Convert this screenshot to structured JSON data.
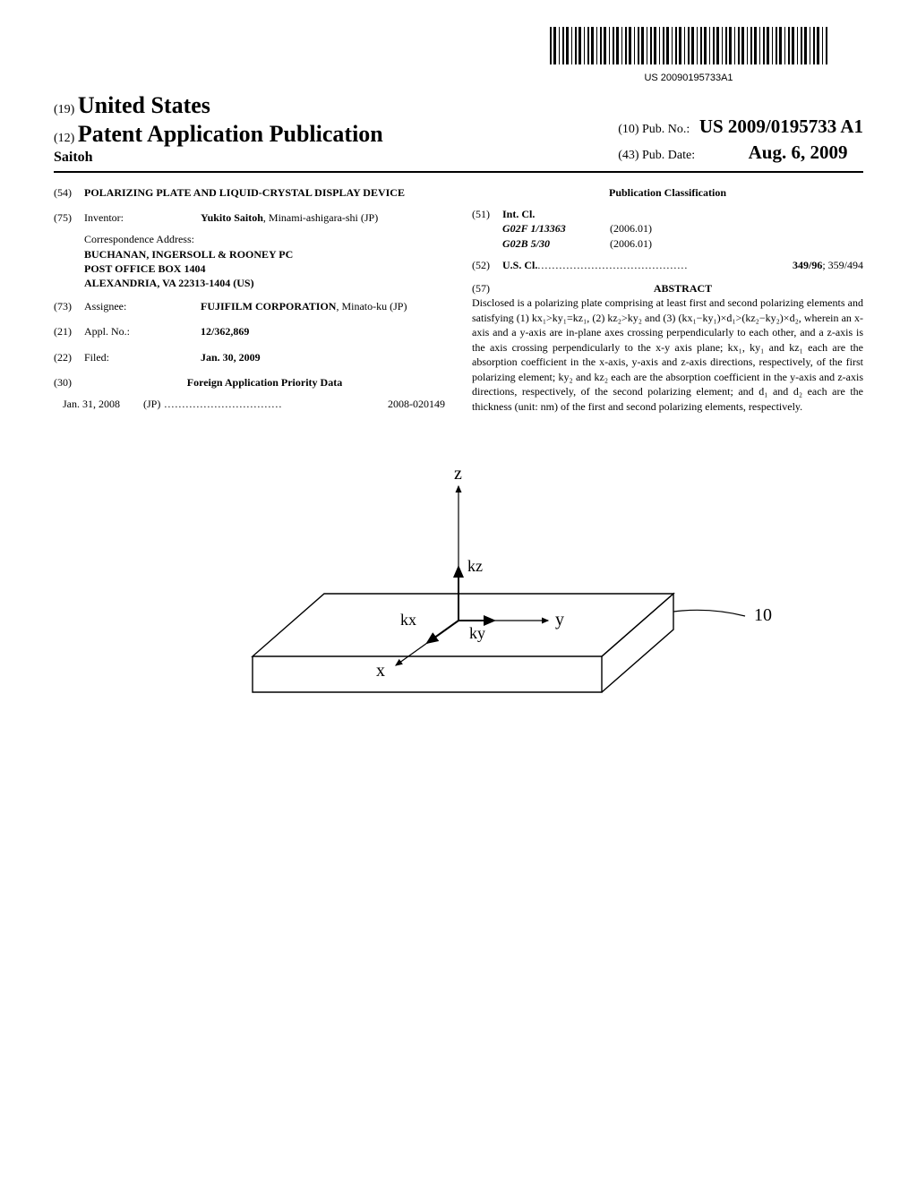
{
  "barcode_number": "US 20090195733A1",
  "header": {
    "country_code": "(19)",
    "country": "United States",
    "pub_type_code": "(12)",
    "pub_type": "Patent Application Publication",
    "applicant": "Saitoh",
    "pub_no_code": "(10)",
    "pub_no_label": "Pub. No.:",
    "pub_no": "US 2009/0195733 A1",
    "pub_date_code": "(43)",
    "pub_date_label": "Pub. Date:",
    "pub_date": "Aug. 6, 2009"
  },
  "left": {
    "title_code": "(54)",
    "title": "POLARIZING PLATE AND LIQUID-CRYSTAL DISPLAY DEVICE",
    "inventor_code": "(75)",
    "inventor_label": "Inventor:",
    "inventor": "Yukito Saitoh, Minami-ashigara-shi (JP)",
    "correspondence_label": "Correspondence Address:",
    "correspondence_line1": "BUCHANAN, INGERSOLL & ROONEY PC",
    "correspondence_line2": "POST OFFICE BOX 1404",
    "correspondence_line3": "ALEXANDRIA, VA 22313-1404 (US)",
    "assignee_code": "(73)",
    "assignee_label": "Assignee:",
    "assignee": "FUJIFILM CORPORATION, Minato-ku (JP)",
    "assignee_bold": "FUJIFILM CORPORATION",
    "assignee_rest": ", Minato-ku (JP)",
    "appl_code": "(21)",
    "appl_label": "Appl. No.:",
    "appl_no": "12/362,869",
    "filed_code": "(22)",
    "filed_label": "Filed:",
    "filed": "Jan. 30, 2009",
    "priority_code": "(30)",
    "priority_title": "Foreign Application Priority Data",
    "priority_date": "Jan. 31, 2008",
    "priority_country": "(JP)",
    "priority_dots": " .................................",
    "priority_no": "2008-020149"
  },
  "right": {
    "pubclass_title": "Publication Classification",
    "intcl_code": "(51)",
    "intcl_label": "Int. Cl.",
    "intcl_items": [
      {
        "cls": "G02F 1/13363",
        "yr": "(2006.01)"
      },
      {
        "cls": "G02B 5/30",
        "yr": "(2006.01)"
      }
    ],
    "uscl_code": "(52)",
    "uscl_label": "U.S. Cl.",
    "uscl_dots": " ..........................................",
    "uscl_bold": "349/96",
    "uscl_rest": "; 359/494",
    "abstract_code": "(57)",
    "abstract_title": "ABSTRACT",
    "abstract_text": "Disclosed is a polarizing plate comprising at least first and second polarizing elements and satisfying (1) kx₁>ky₁=kz₁, (2) kz₂>ky₂ and (3) (kx₁−ky₁)×d₁>(kz₂−ky₂)×d₂, wherein an x-axis and a y-axis are in-plane axes crossing perpendicularly to each other, and a z-axis is the axis crossing perpendicularly to the x-y axis plane; kx₁, ky₁ and kz₁ each are the absorption coefficient in the x-axis, y-axis and z-axis directions, respectively, of the first polarizing element; ky₂ and kz₂ each are the absorption coefficient in the y-axis and z-axis directions, respectively, of the second polarizing element; and d₁ and d₂ each are the thickness (unit: nm) of the first and second polarizing elements, respectively."
  },
  "figure": {
    "labels": {
      "z": "z",
      "y": "y",
      "x": "x",
      "kz": "kz",
      "kx": "kx",
      "ky": "ky",
      "ref": "10"
    },
    "stroke": "#000000",
    "stroke_width": 1.2
  }
}
